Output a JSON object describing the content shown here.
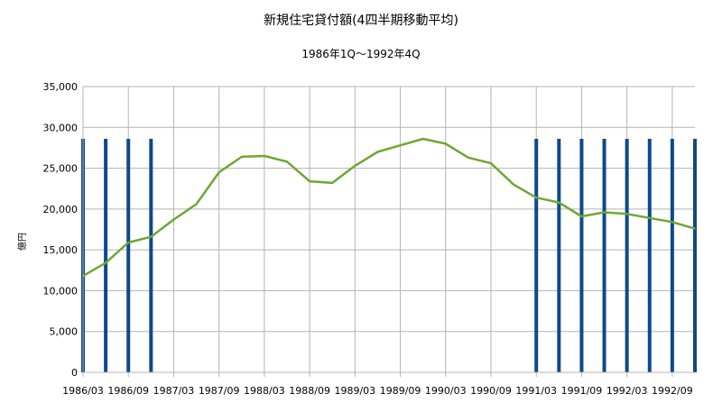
{
  "chart_data": {
    "type": "line",
    "title": "新規住宅貸付額(4四半期移動平均)",
    "subtitle": "1986年1Q～1992年4Q",
    "ylabel": "億円",
    "xlabel": "",
    "ylim": [
      0,
      35000
    ],
    "yticks": [
      0,
      5000,
      10000,
      15000,
      20000,
      25000,
      30000,
      35000
    ],
    "ytick_labels": [
      "0",
      "5,000",
      "10,000",
      "15,000",
      "20,000",
      "25,000",
      "30,000",
      "35,000"
    ],
    "grid": true,
    "x": [
      "1986/03",
      "1986/06",
      "1986/09",
      "1986/12",
      "1987/03",
      "1987/06",
      "1987/09",
      "1987/12",
      "1988/03",
      "1988/06",
      "1988/09",
      "1988/12",
      "1989/03",
      "1989/06",
      "1989/09",
      "1989/12",
      "1990/03",
      "1990/06",
      "1990/09",
      "1990/12",
      "1991/03",
      "1991/06",
      "1991/09",
      "1991/12",
      "1992/03",
      "1992/06",
      "1992/09",
      "1992/12"
    ],
    "xtick_labels": [
      "1986/03",
      "1986/09",
      "1987/03",
      "1987/09",
      "1988/03",
      "1988/09",
      "1989/03",
      "1989/09",
      "1990/03",
      "1990/09",
      "1991/03",
      "1991/09",
      "1992/03",
      "1992/09"
    ],
    "series": [
      {
        "type": "line",
        "color": "#6ea733",
        "values": [
          11800,
          13400,
          15900,
          16600,
          18700,
          20600,
          24500,
          26400,
          26500,
          25800,
          23400,
          23200,
          25300,
          27000,
          27800,
          28600,
          28000,
          26300,
          25600,
          23000,
          21400,
          20800,
          19100,
          19600,
          19400,
          18900,
          18400,
          17600
        ]
      },
      {
        "type": "bar",
        "color": "#0b4a8c",
        "value": 28600,
        "at": [
          "1986/03",
          "1986/06",
          "1986/09",
          "1986/12",
          "1991/03",
          "1991/06",
          "1991/09",
          "1991/12",
          "1992/03",
          "1992/06",
          "1992/09",
          "1992/12"
        ]
      }
    ]
  }
}
